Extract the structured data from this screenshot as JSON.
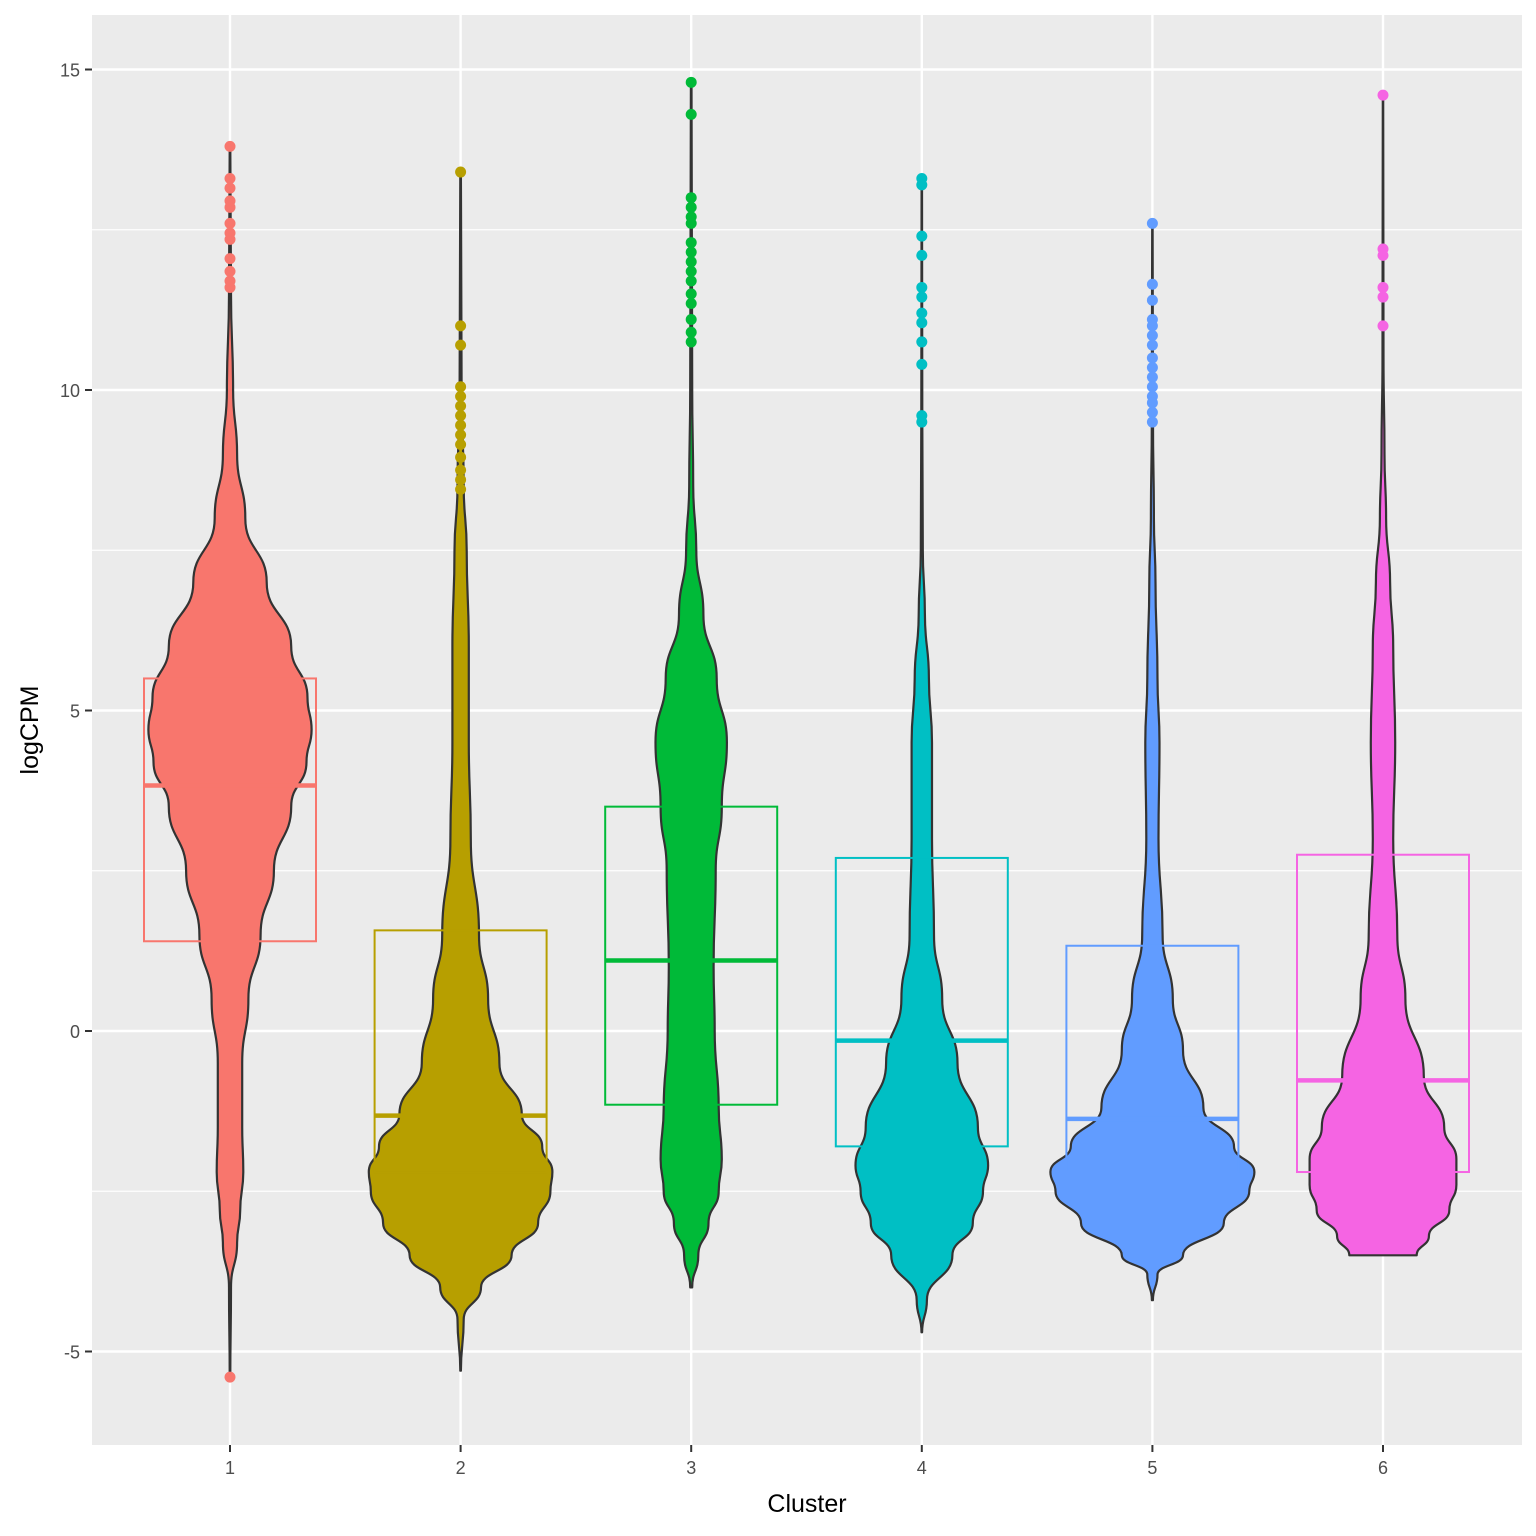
{
  "chart_data": {
    "type": "violin",
    "title": "",
    "xlabel": "Cluster",
    "ylabel": "logCPM",
    "categories": [
      "1",
      "2",
      "3",
      "4",
      "5",
      "6"
    ],
    "ylim": [
      -6.5,
      16
    ],
    "y_ticks": [
      -5,
      0,
      5,
      10,
      15
    ],
    "y_tick_labels": [
      "-5",
      "0",
      "5",
      "10",
      "15"
    ],
    "grid": true,
    "legend": "none",
    "series": [
      {
        "name": "1",
        "color": "#F8766D",
        "box": {
          "q1": 1.4,
          "median": 3.83,
          "q3": 5.5
        },
        "violin_min": -5.4,
        "violin_max": 13.8,
        "density": [
          [
            -5.4,
            0.003
          ],
          [
            -4.0,
            0.01
          ],
          [
            -3.3,
            0.07
          ],
          [
            -2.8,
            0.1
          ],
          [
            -2.2,
            0.13
          ],
          [
            -1.5,
            0.12
          ],
          [
            -0.5,
            0.12
          ],
          [
            0.5,
            0.18
          ],
          [
            1.5,
            0.3
          ],
          [
            2.5,
            0.43
          ],
          [
            3.5,
            0.6
          ],
          [
            4.2,
            0.75
          ],
          [
            4.7,
            0.8
          ],
          [
            5.2,
            0.76
          ],
          [
            6.0,
            0.6
          ],
          [
            7.0,
            0.36
          ],
          [
            8.0,
            0.15
          ],
          [
            9.0,
            0.07
          ],
          [
            10.0,
            0.03
          ],
          [
            11.5,
            0.01
          ],
          [
            13.8,
            0.003
          ]
        ],
        "outliers": [
          13.8,
          13.3,
          13.15,
          12.95,
          12.85,
          12.6,
          12.45,
          12.35,
          12.05,
          11.85,
          11.7,
          11.6,
          -5.4
        ]
      },
      {
        "name": "2",
        "color": "#B79F00",
        "box": {
          "q1": -2.2,
          "median": -1.32,
          "q3": 1.57
        },
        "violin_min": -5.3,
        "violin_max": 13.4,
        "density": [
          [
            -5.3,
            0.003
          ],
          [
            -4.5,
            0.03
          ],
          [
            -4.0,
            0.2
          ],
          [
            -3.5,
            0.5
          ],
          [
            -3.0,
            0.76
          ],
          [
            -2.5,
            0.88
          ],
          [
            -2.2,
            0.9
          ],
          [
            -1.8,
            0.8
          ],
          [
            -1.3,
            0.6
          ],
          [
            -0.5,
            0.38
          ],
          [
            0.5,
            0.27
          ],
          [
            1.5,
            0.18
          ],
          [
            3.0,
            0.1
          ],
          [
            4.5,
            0.08
          ],
          [
            6.0,
            0.08
          ],
          [
            7.5,
            0.06
          ],
          [
            8.5,
            0.03
          ],
          [
            10.0,
            0.01
          ],
          [
            13.4,
            0.003
          ]
        ],
        "outliers": [
          13.4,
          11.0,
          10.7,
          10.05,
          9.9,
          9.75,
          9.6,
          9.45,
          9.3,
          9.15,
          8.95,
          8.75,
          8.6,
          8.45
        ]
      },
      {
        "name": "3",
        "color": "#00BA38",
        "box": {
          "q1": -1.15,
          "median": 1.1,
          "q3": 3.5
        },
        "violin_min": -4.0,
        "violin_max": 14.8,
        "density": [
          [
            -4.0,
            0.01
          ],
          [
            -3.5,
            0.07
          ],
          [
            -3.0,
            0.17
          ],
          [
            -2.5,
            0.27
          ],
          [
            -2.0,
            0.3
          ],
          [
            -1.2,
            0.27
          ],
          [
            0.0,
            0.23
          ],
          [
            1.0,
            0.22
          ],
          [
            2.5,
            0.24
          ],
          [
            3.5,
            0.3
          ],
          [
            4.5,
            0.35
          ],
          [
            5.5,
            0.25
          ],
          [
            6.5,
            0.12
          ],
          [
            7.5,
            0.05
          ],
          [
            8.5,
            0.02
          ],
          [
            10.0,
            0.01
          ],
          [
            14.8,
            0.003
          ]
        ],
        "outliers": [
          14.8,
          14.3,
          13.0,
          12.85,
          12.7,
          12.6,
          12.3,
          12.15,
          12.0,
          11.85,
          11.7,
          11.5,
          11.35,
          11.1,
          10.9,
          10.75
        ]
      },
      {
        "name": "4",
        "color": "#00BFC4",
        "box": {
          "q1": -1.8,
          "median": -0.15,
          "q3": 2.7
        },
        "violin_min": -4.7,
        "violin_max": 13.3,
        "density": [
          [
            -4.7,
            0.003
          ],
          [
            -4.2,
            0.05
          ],
          [
            -3.5,
            0.3
          ],
          [
            -3.0,
            0.5
          ],
          [
            -2.5,
            0.6
          ],
          [
            -2.1,
            0.65
          ],
          [
            -1.5,
            0.55
          ],
          [
            -0.5,
            0.35
          ],
          [
            0.5,
            0.2
          ],
          [
            1.5,
            0.12
          ],
          [
            3.0,
            0.1
          ],
          [
            4.5,
            0.1
          ],
          [
            5.5,
            0.07
          ],
          [
            6.5,
            0.03
          ],
          [
            7.5,
            0.01
          ],
          [
            9.5,
            0.005
          ],
          [
            13.3,
            0.002
          ]
        ],
        "outliers": [
          13.3,
          13.2,
          12.4,
          12.1,
          11.6,
          11.45,
          11.2,
          11.05,
          10.75,
          10.4,
          9.6,
          9.5
        ]
      },
      {
        "name": "5",
        "color": "#619CFF",
        "box": {
          "q1": -2.2,
          "median": -1.37,
          "q3": 1.33
        },
        "violin_min": -4.2,
        "violin_max": 12.6,
        "density": [
          [
            -4.2,
            0.005
          ],
          [
            -3.8,
            0.05
          ],
          [
            -3.5,
            0.3
          ],
          [
            -3.0,
            0.7
          ],
          [
            -2.5,
            0.95
          ],
          [
            -2.2,
            1.0
          ],
          [
            -1.8,
            0.8
          ],
          [
            -1.2,
            0.5
          ],
          [
            -0.3,
            0.3
          ],
          [
            0.5,
            0.2
          ],
          [
            1.5,
            0.1
          ],
          [
            3.0,
            0.06
          ],
          [
            4.5,
            0.07
          ],
          [
            5.5,
            0.05
          ],
          [
            7.0,
            0.03
          ],
          [
            8.0,
            0.015
          ],
          [
            9.5,
            0.006
          ],
          [
            12.6,
            0.002
          ]
        ],
        "outliers": [
          12.6,
          11.65,
          11.4,
          11.1,
          11.0,
          10.85,
          10.7,
          10.5,
          10.35,
          10.2,
          10.05,
          9.9,
          9.8,
          9.65,
          9.5
        ]
      },
      {
        "name": "6",
        "color": "#F564E3",
        "box": {
          "q1": -2.2,
          "median": -0.77,
          "q3": 2.75
        },
        "violin_min": -3.5,
        "violin_max": 14.6,
        "density": [
          [
            -3.5,
            0.33
          ],
          [
            -3.2,
            0.45
          ],
          [
            -2.8,
            0.65
          ],
          [
            -2.4,
            0.72
          ],
          [
            -2.0,
            0.72
          ],
          [
            -1.5,
            0.6
          ],
          [
            -0.7,
            0.4
          ],
          [
            0.5,
            0.22
          ],
          [
            1.5,
            0.14
          ],
          [
            3.0,
            0.1
          ],
          [
            4.5,
            0.12
          ],
          [
            6.0,
            0.1
          ],
          [
            7.0,
            0.07
          ],
          [
            8.0,
            0.03
          ],
          [
            9.0,
            0.015
          ],
          [
            10.5,
            0.005
          ],
          [
            14.6,
            0.002
          ]
        ],
        "outliers": [
          14.6,
          12.2,
          12.1,
          11.6,
          11.45,
          11.0
        ]
      }
    ]
  }
}
